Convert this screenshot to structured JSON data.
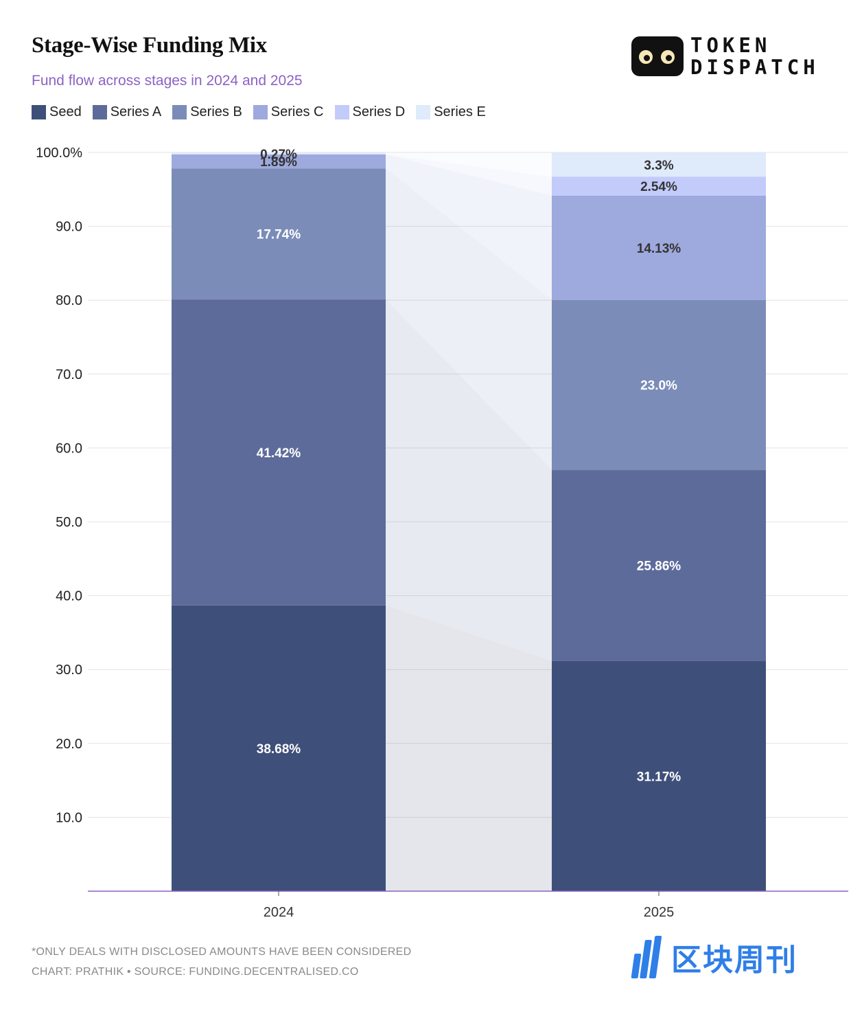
{
  "header": {
    "title": "Stage-Wise Funding Mix",
    "subtitle": "Fund flow across stages in 2024 and 2025"
  },
  "brand": {
    "line1": "TOKEN",
    "line2": "DISPATCH"
  },
  "chart_data": {
    "type": "bar",
    "stacked": true,
    "categories": [
      "2024",
      "2025"
    ],
    "series": [
      {
        "name": "Seed",
        "color": "#3e4f7a",
        "label_color": "#ffffff",
        "values": [
          38.68,
          31.17
        ],
        "labels": [
          "38.68%",
          "31.17%"
        ]
      },
      {
        "name": "Series A",
        "color": "#5d6b9a",
        "label_color": "#ffffff",
        "values": [
          41.42,
          25.86
        ],
        "labels": [
          "41.42%",
          "25.86%"
        ]
      },
      {
        "name": "Series B",
        "color": "#7b8cb8",
        "label_color": "#ffffff",
        "values": [
          17.74,
          23.0
        ],
        "labels": [
          "17.74%",
          "23.0%"
        ]
      },
      {
        "name": "Series C",
        "color": "#9ea9dd",
        "label_color": "#333333",
        "values": [
          1.89,
          14.13
        ],
        "labels": [
          "1.89%",
          "14.13%"
        ]
      },
      {
        "name": "Series D",
        "color": "#c2cbfa",
        "label_color": "#333333",
        "values": [
          0.0,
          2.54
        ],
        "labels": [
          "",
          "2.54%"
        ]
      },
      {
        "name": "Series E",
        "color": "#dfeafb",
        "label_color": "#333333",
        "values": [
          0.27,
          3.3
        ],
        "labels": [
          "0.27%",
          "3.3%"
        ]
      }
    ],
    "yticks": [
      "10.0",
      "20.0",
      "30.0",
      "40.0",
      "50.0",
      "60.0",
      "70.0",
      "80.0",
      "90.0",
      "100.0%"
    ],
    "ylim": [
      0,
      100
    ],
    "grid": true,
    "legend_position": "top-left",
    "axis_color": "#8a63c4"
  },
  "footer": {
    "note": "*ONLY DEALS WITH DISCLOSED AMOUNTS HAVE BEEN CONSIDERED",
    "credit": "CHART: PRATHIK • SOURCE: FUNDING.DECENTRALISED.CO"
  },
  "watermark": {
    "text": "区块周刊"
  }
}
